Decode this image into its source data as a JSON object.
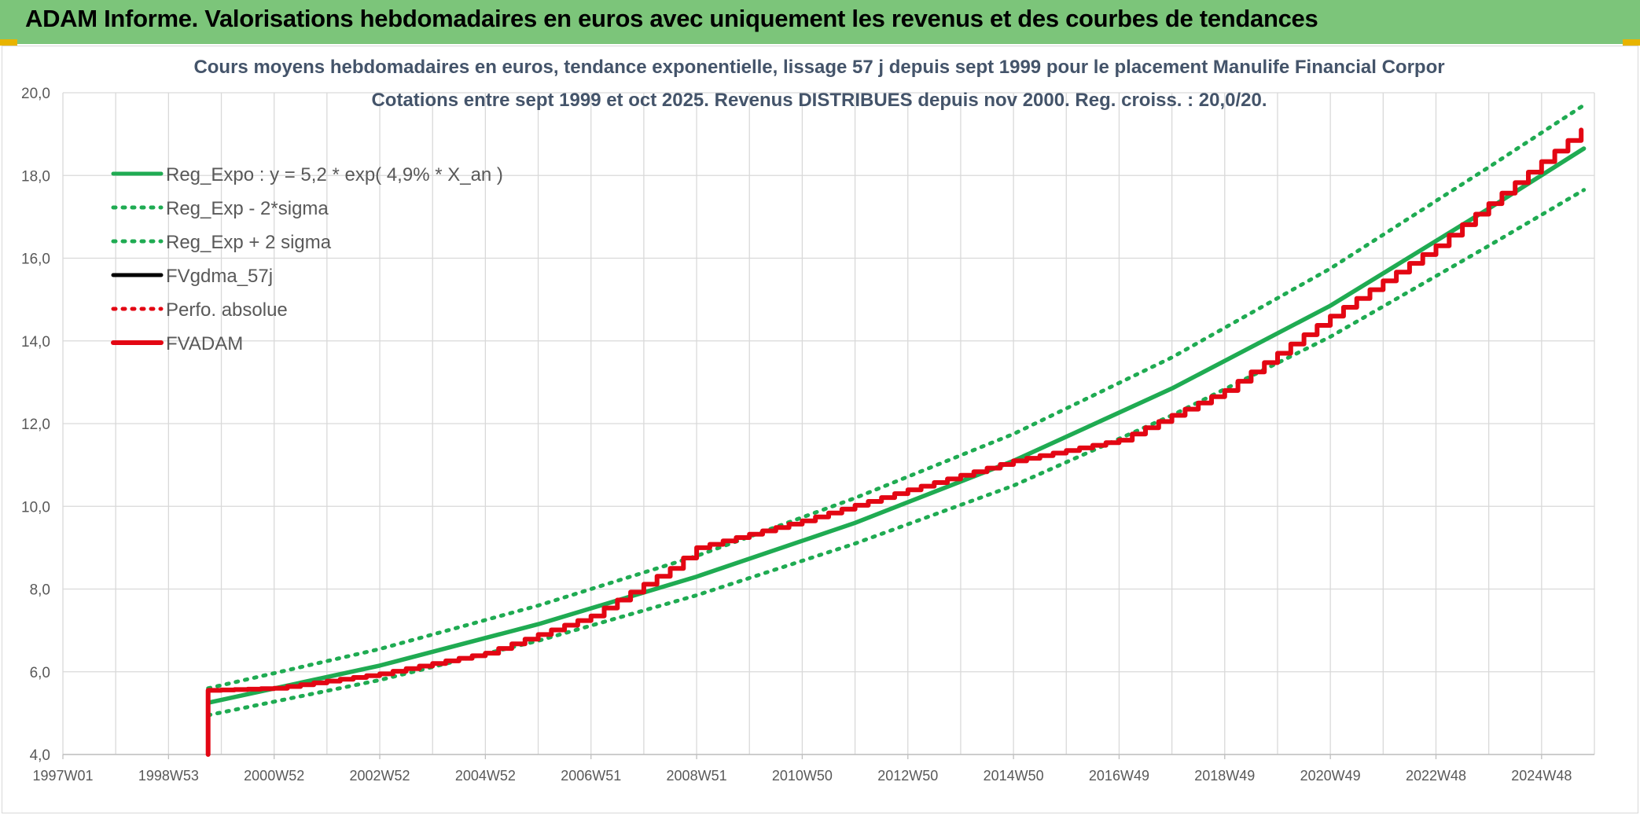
{
  "header": {
    "title": "ADAM Informe. Valorisations hebdomadaires en euros avec uniquement les revenus et des courbes de tendances"
  },
  "colors": {
    "header_bg": "#7cc57a",
    "reg_green": "#1fab52",
    "red": "#e30613",
    "black": "#000000"
  },
  "chart_data": {
    "type": "line",
    "title": [
      "Cours moyens hebdomadaires en euros, tendance exponentielle, lissage 57 j depuis sept 1999 pour le placement Manulife Financial Corpor",
      "Cotations entre sept 1999 et oct 2025. Revenus DISTRIBUES depuis nov 2000. Reg. croiss. : 20,0/20."
    ],
    "xlabel": "",
    "ylabel": "",
    "ylim": [
      4,
      20
    ],
    "yticks": [
      "4,0",
      "6,0",
      "8,0",
      "10,0",
      "12,0",
      "14,0",
      "16,0",
      "18,0",
      "20,0"
    ],
    "xlim": [
      1997.0,
      2026.0
    ],
    "xticks": [
      {
        "label": "1997W01",
        "year": 1997.0
      },
      {
        "label": "1998W53",
        "year": 1999.0
      },
      {
        "label": "2000W52",
        "year": 2001.0
      },
      {
        "label": "2002W52",
        "year": 2003.0
      },
      {
        "label": "2004W52",
        "year": 2005.0
      },
      {
        "label": "2006W51",
        "year": 2007.0
      },
      {
        "label": "2008W51",
        "year": 2009.0
      },
      {
        "label": "2010W50",
        "year": 2011.0
      },
      {
        "label": "2012W50",
        "year": 2013.0
      },
      {
        "label": "2014W50",
        "year": 2015.0
      },
      {
        "label": "2016W49",
        "year": 2017.0
      },
      {
        "label": "2018W49",
        "year": 2019.0
      },
      {
        "label": "2020W49",
        "year": 2021.0
      },
      {
        "label": "2022W48",
        "year": 2023.0
      },
      {
        "label": "2024W48",
        "year": 2025.0
      }
    ],
    "grid": true,
    "legend_position": "top-left",
    "series": [
      {
        "name": "Reg_Expo : y = 5,2 * exp( 4,9% *  X_an )",
        "color": "#1fab52",
        "style": "solid",
        "x": [
          1999.75,
          2003,
          2006,
          2009,
          2012,
          2015,
          2018,
          2021,
          2024,
          2025.8
        ],
        "y": [
          5.25,
          6.15,
          7.15,
          8.3,
          9.6,
          11.1,
          12.85,
          14.85,
          17.2,
          18.65
        ]
      },
      {
        "name": "Reg_Exp - 2*sigma",
        "color": "#1fab52",
        "style": "dotted",
        "x": [
          1999.75,
          2003,
          2006,
          2009,
          2012,
          2015,
          2018,
          2021,
          2024,
          2025.8
        ],
        "y": [
          4.95,
          5.8,
          6.75,
          7.85,
          9.1,
          10.5,
          12.2,
          14.1,
          16.3,
          17.65
        ]
      },
      {
        "name": "Reg_Exp + 2 sigma",
        "color": "#1fab52",
        "style": "dotted",
        "x": [
          1999.75,
          2003,
          2006,
          2009,
          2012,
          2015,
          2018,
          2021,
          2024,
          2025.8
        ],
        "y": [
          5.6,
          6.55,
          7.6,
          8.8,
          10.2,
          11.75,
          13.6,
          15.75,
          18.2,
          19.7
        ]
      },
      {
        "name": "FVgdma_57j",
        "color": "#000000",
        "style": "solid",
        "x": [],
        "y": []
      },
      {
        "name": "Perfo. absolue",
        "color": "#e30613",
        "style": "dotted",
        "x": [],
        "y": []
      },
      {
        "name": "FVADAM",
        "color": "#e30613",
        "style": "solid",
        "x": [
          1999.75,
          1999.75,
          2001,
          2003,
          2005,
          2007,
          2008.5,
          2009,
          2011,
          2013,
          2015,
          2017,
          2019,
          2021,
          2023,
          2025.8
        ],
        "y": [
          4.0,
          5.55,
          5.6,
          5.95,
          6.45,
          7.35,
          8.5,
          9.0,
          9.65,
          10.4,
          11.1,
          11.6,
          12.8,
          14.6,
          16.3,
          19.15
        ]
      }
    ]
  }
}
